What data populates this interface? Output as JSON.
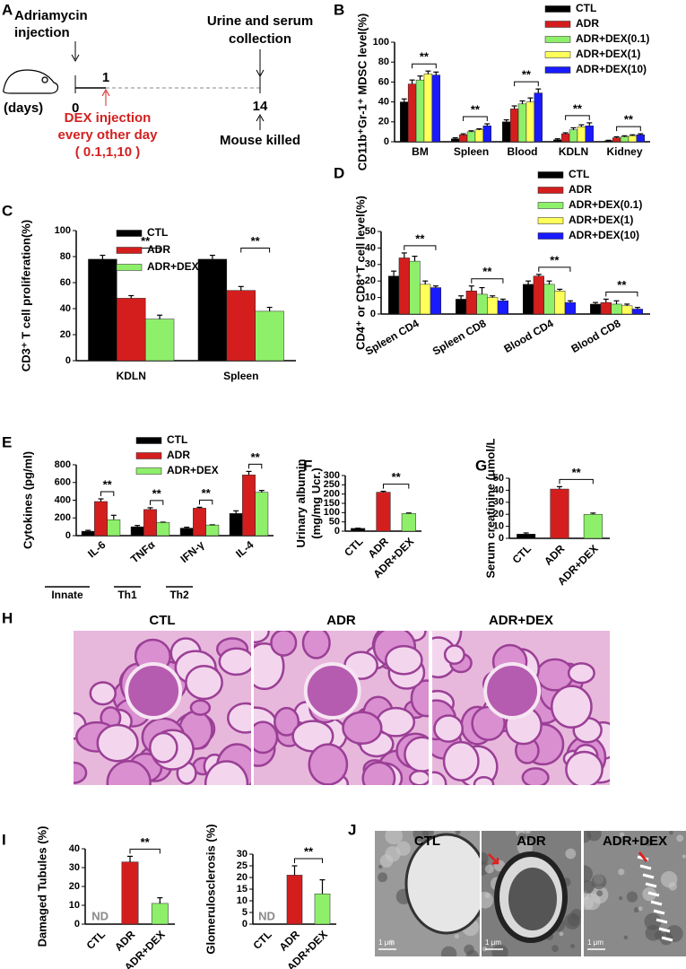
{
  "panel_labels": [
    "A",
    "B",
    "C",
    "D",
    "E",
    "F",
    "G",
    "H",
    "I",
    "J"
  ],
  "panel_a": {
    "adriamycin": [
      "Adriamycin",
      "injection"
    ],
    "collection": [
      "Urine and serum",
      "collection"
    ],
    "days_label": "(days)",
    "day_ticks": [
      0,
      1,
      14
    ],
    "dex": [
      "DEX injection",
      "every other day",
      "( 0.1,1,10 )"
    ],
    "killed": "Mouse killed"
  },
  "chart_data": [
    {
      "type": "bar",
      "y_label": "CD11b⁺Gr-1⁺ MDSC level(%)",
      "categories": [
        "BM",
        "Spleen",
        "Blood",
        "KDLN",
        "Kidney"
      ],
      "series": [
        {
          "name": "CTL",
          "color": "#000000",
          "values": [
            40,
            3,
            20,
            2,
            1
          ],
          "errors": [
            3,
            1,
            2,
            1,
            0.5
          ]
        },
        {
          "name": "ADR",
          "color": "#d41e1e",
          "values": [
            58,
            7,
            33,
            8,
            4
          ],
          "errors": [
            4,
            1,
            3,
            1,
            1
          ]
        },
        {
          "name": "ADR+DEX(0.1)",
          "color": "#8ef06a",
          "values": [
            62,
            10,
            38,
            12,
            5
          ],
          "errors": [
            4,
            1,
            3,
            2,
            1
          ]
        },
        {
          "name": "ADR+DEX(1)",
          "color": "#ffff5a",
          "values": [
            68,
            12,
            40,
            15,
            6
          ],
          "errors": [
            3,
            1,
            4,
            2,
            1
          ]
        },
        {
          "name": "ADR+DEX(10)",
          "color": "#1a1aff",
          "values": [
            67,
            16,
            49,
            16,
            7
          ],
          "errors": [
            3,
            2,
            4,
            3,
            1
          ]
        }
      ],
      "ylim": [
        0,
        100
      ],
      "yticks": [
        0,
        20,
        40,
        60,
        80,
        100
      ],
      "annotations": [
        "**",
        "**",
        "**",
        "**",
        "**"
      ]
    },
    {
      "type": "bar",
      "y_label": "CD3⁺ T cell proliferation(%)",
      "categories": [
        "KDLN",
        "Spleen"
      ],
      "series": [
        {
          "name": "CTL",
          "color": "#000000",
          "values": [
            78,
            78
          ],
          "errors": [
            3,
            3
          ]
        },
        {
          "name": "ADR",
          "color": "#d41e1e",
          "values": [
            48,
            54
          ],
          "errors": [
            2,
            3
          ]
        },
        {
          "name": "ADR+DEX",
          "color": "#8ef06a",
          "values": [
            32,
            38
          ],
          "errors": [
            3,
            3
          ]
        }
      ],
      "ylim": [
        0,
        100
      ],
      "yticks": [
        0,
        20,
        40,
        60,
        80,
        100
      ],
      "annotations": [
        "**",
        "**"
      ]
    },
    {
      "type": "bar",
      "y_label": "CD4⁺ or CD8⁺T cell level(%)",
      "categories": [
        "Spleen CD4",
        "Spleen CD8",
        "Blood CD4",
        "Blood CD8"
      ],
      "series": [
        {
          "name": "CTL",
          "color": "#000000",
          "values": [
            23,
            9,
            18,
            6
          ],
          "errors": [
            3,
            2,
            2,
            1
          ]
        },
        {
          "name": "ADR",
          "color": "#d41e1e",
          "values": [
            34,
            14,
            23,
            7
          ],
          "errors": [
            3,
            3,
            1,
            2
          ]
        },
        {
          "name": "ADR+DEX(0.1)",
          "color": "#8ef06a",
          "values": [
            32,
            12,
            18,
            6
          ],
          "errors": [
            3,
            4,
            2,
            2
          ]
        },
        {
          "name": "ADR+DEX(1)",
          "color": "#ffff5a",
          "values": [
            18,
            10,
            14,
            5
          ],
          "errors": [
            2,
            1,
            1,
            1
          ]
        },
        {
          "name": "ADR+DEX(10)",
          "color": "#1a1aff",
          "values": [
            16,
            8,
            7,
            3
          ],
          "errors": [
            1,
            1,
            1,
            1
          ]
        }
      ],
      "ylim": [
        0,
        50
      ],
      "yticks": [
        0,
        10,
        20,
        30,
        40,
        50
      ],
      "annotations": [
        "**",
        "**",
        "**",
        "**"
      ]
    },
    {
      "type": "bar",
      "y_label": "Cytokines  (pg/ml)",
      "categories": [
        "IL-6",
        "TNFα",
        "IFN-γ",
        "IL-4"
      ],
      "series": [
        {
          "name": "CTL",
          "color": "#000000",
          "values": [
            50,
            100,
            85,
            250
          ],
          "errors": [
            10,
            15,
            10,
            30
          ]
        },
        {
          "name": "ADR",
          "color": "#d41e1e",
          "values": [
            385,
            295,
            310,
            685
          ],
          "errors": [
            30,
            20,
            10,
            40
          ]
        },
        {
          "name": "ADR+DEX",
          "color": "#8ef06a",
          "values": [
            180,
            150,
            120,
            490
          ],
          "errors": [
            50,
            2,
            2,
            20
          ]
        }
      ],
      "ylim": [
        0,
        800
      ],
      "yticks": [
        0,
        200,
        400,
        600,
        800
      ],
      "annotations": [
        "**",
        "**",
        "**",
        "**"
      ],
      "groups": [
        "Innate",
        "Th1",
        "Th2"
      ]
    },
    {
      "type": "bar",
      "y_label": [
        "Urinary albumin",
        "(mg/mg Ucr.)"
      ],
      "categories": [
        "CTL",
        "ADR",
        "ADR+DEX"
      ],
      "values": [
        15,
        210,
        95
      ],
      "errors": [
        1,
        5,
        3
      ],
      "colors": [
        "#000000",
        "#d41e1e",
        "#8ef06a"
      ],
      "ylim": [
        0,
        300
      ],
      "yticks": [
        0,
        50,
        100,
        150,
        200,
        250,
        300
      ],
      "annotations": [
        "**"
      ]
    },
    {
      "type": "bar",
      "y_label": "Serum creatinine (umol/L",
      "categories": [
        "CTL",
        "ADR",
        "ADR+DEX"
      ],
      "values": [
        3.5,
        41,
        20
      ],
      "errors": [
        1,
        2,
        1
      ],
      "colors": [
        "#000000",
        "#d41e1e",
        "#8ef06a"
      ],
      "ylim": [
        0,
        50
      ],
      "yticks": [
        0,
        10,
        20,
        30,
        40,
        50
      ],
      "annotations": [
        "**"
      ]
    },
    {
      "type": "bar",
      "y_label": "Damaged Tubules (%)",
      "categories": [
        "CTL",
        "ADR",
        "ADR+DEX"
      ],
      "values": [
        null,
        33,
        11
      ],
      "value_labels": [
        "ND",
        null,
        null
      ],
      "errors": [
        null,
        3,
        3
      ],
      "colors": [
        "#000000",
        "#d41e1e",
        "#8ef06a"
      ],
      "ylim": [
        0,
        40
      ],
      "yticks": [
        0,
        10,
        20,
        30,
        40
      ],
      "annotations": [
        "**"
      ]
    },
    {
      "type": "bar",
      "y_label": "Glomerulosclerosis (%)",
      "categories": [
        "CTL",
        "ADR",
        "ADR+DEX"
      ],
      "values": [
        null,
        21,
        13
      ],
      "value_labels": [
        "ND",
        null,
        null
      ],
      "errors": [
        null,
        4,
        6
      ],
      "colors": [
        "#000000",
        "#d41e1e",
        "#8ef06a"
      ],
      "ylim": [
        0,
        30
      ],
      "yticks": [
        0,
        5,
        10,
        15,
        20,
        25,
        30
      ],
      "annotations": [
        "**"
      ]
    }
  ],
  "panel_h": {
    "titles": [
      "CTL",
      "ADR",
      "ADR+DEX"
    ]
  },
  "panel_j": {
    "titles": [
      "CTL",
      "ADR",
      "ADR+DEX"
    ],
    "scale_bars": [
      "1 μm",
      "1 μm",
      "1 μm"
    ]
  }
}
